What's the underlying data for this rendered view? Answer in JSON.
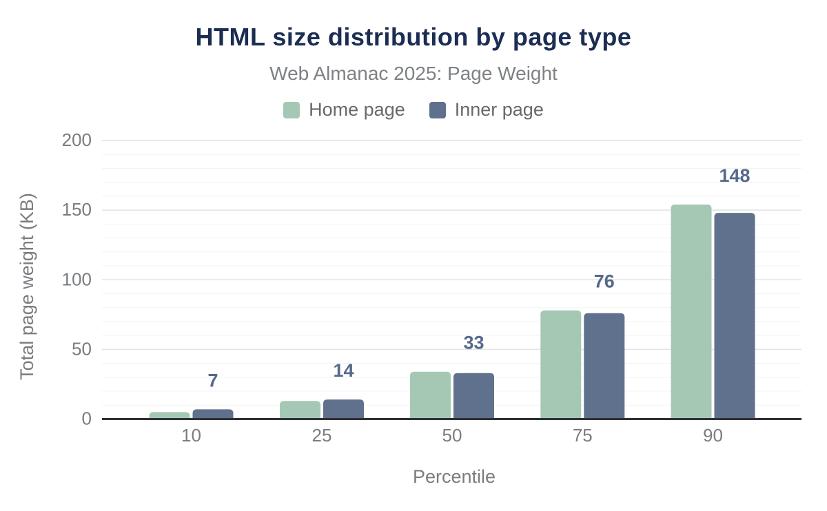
{
  "page": {
    "background": "#ffffff"
  },
  "chart_data": {
    "type": "bar",
    "title": "HTML size distribution by page type",
    "subtitle": "Web Almanac 2025: Page Weight",
    "xlabel": "Percentile",
    "ylabel": "Total page weight (KB)",
    "categories": [
      "10",
      "25",
      "50",
      "75",
      "90"
    ],
    "series": [
      {
        "name": "Home page",
        "color": "#a5c8b5",
        "values": [
          5,
          13,
          34,
          78,
          154
        ]
      },
      {
        "name": "Inner page",
        "color": "#5f718c",
        "values": [
          7,
          14,
          33,
          76,
          148
        ]
      }
    ],
    "bar_labels": [
      "7",
      "14",
      "33",
      "76",
      "148"
    ],
    "ylim": [
      0,
      200
    ],
    "y_ticks": [
      0,
      50,
      100,
      150,
      200
    ],
    "y_minor_step": 10,
    "grid": "horizontal",
    "legend_position": "top",
    "colors": {
      "title_text": "#1b2d52",
      "subtitle_text": "#7e8184",
      "legend_text": "#66696d",
      "tick_text": "#797d80",
      "axis_label_text": "#797d80",
      "bar_label_text": "#55698c",
      "axis_line": "#2f3033",
      "grid_major": "#e1e3e4",
      "grid_minor": "#f2f3f3"
    }
  }
}
